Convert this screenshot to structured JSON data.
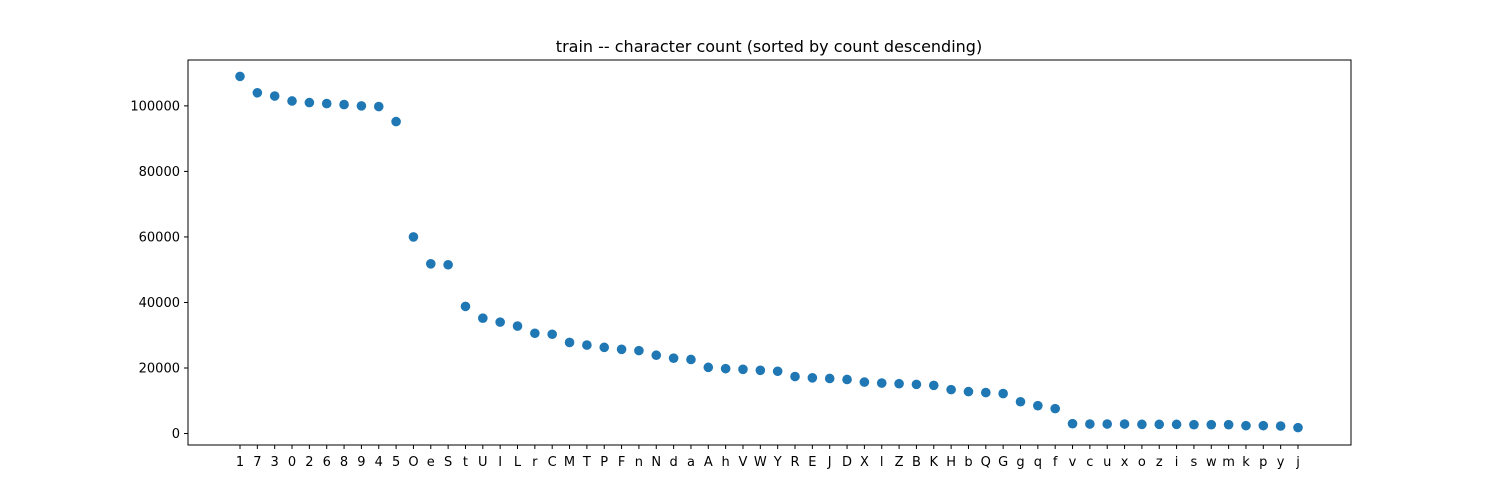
{
  "chart_data": {
    "type": "scatter",
    "title": "train -- character count (sorted by count descending)",
    "xlabel": "",
    "ylabel": "",
    "ylim": [
      -3500,
      114000
    ],
    "yticks": [
      0,
      20000,
      40000,
      60000,
      80000,
      100000
    ],
    "ytick_labels": [
      "0",
      "20000",
      "40000",
      "60000",
      "80000",
      "100000"
    ],
    "marker_color": "#1f77b4",
    "grid": false,
    "legend": "none",
    "categories": [
      "1",
      "7",
      "3",
      "0",
      "2",
      "6",
      "8",
      "9",
      "4",
      "5",
      "O",
      "e",
      "S",
      "t",
      "U",
      "I",
      "L",
      "r",
      "C",
      "M",
      "T",
      "P",
      "F",
      "n",
      "N",
      "d",
      "a",
      "A",
      "h",
      "V",
      "W",
      "Y",
      "R",
      "E",
      "J",
      "D",
      "X",
      "l",
      "Z",
      "B",
      "K",
      "H",
      "b",
      "Q",
      "G",
      "g",
      "q",
      "f",
      "v",
      "c",
      "u",
      "x",
      "o",
      "z",
      "i",
      "s",
      "w",
      "m",
      "k",
      "p",
      "y",
      "j"
    ],
    "values": [
      109000,
      104000,
      103000,
      101500,
      101000,
      100700,
      100400,
      100000,
      99800,
      95200,
      60000,
      51800,
      51500,
      38800,
      35200,
      34000,
      32800,
      30600,
      30300,
      27800,
      27000,
      26300,
      25700,
      25300,
      23900,
      23000,
      22600,
      20200,
      19800,
      19600,
      19300,
      19000,
      17400,
      17000,
      16800,
      16500,
      15700,
      15400,
      15200,
      15000,
      14700,
      13400,
      12800,
      12500,
      12200,
      9700,
      8500,
      7600,
      3000,
      2900,
      2900,
      2900,
      2800,
      2800,
      2800,
      2700,
      2700,
      2700,
      2400,
      2400,
      2300,
      1800
    ]
  }
}
